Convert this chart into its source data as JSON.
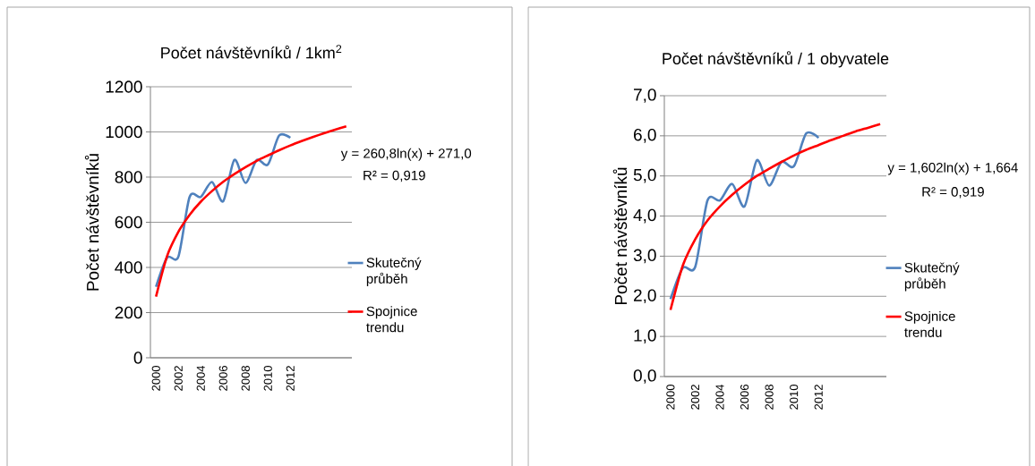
{
  "chart_data": [
    {
      "type": "line",
      "title": "Počet návštěvníků / 1km$^{2}$",
      "ylabel": "Počet návštěvníků",
      "categories": [
        "2000",
        null,
        "2002",
        null,
        "2004",
        null,
        "2006",
        null,
        "2008",
        null,
        "2010",
        null,
        "2012",
        null,
        null,
        null,
        null,
        null
      ],
      "series": [
        {
          "name": "Skutečný průběh",
          "color": "#4f81bd",
          "values": [
            314,
            444,
            448,
            712,
            712,
            778,
            693,
            876,
            774,
            876,
            856,
            984,
            974,
            null,
            null,
            null,
            null,
            null
          ]
        },
        {
          "name": "Spojnice trendu",
          "color": "#ff0000",
          "values": [
            271,
            452,
            558,
            633,
            691,
            738,
            779,
            813,
            844,
            872,
            896,
            919,
            940,
            959,
            977,
            994,
            1010,
            1025
          ]
        }
      ],
      "ylim": [
        0,
        1200
      ],
      "yticks": [
        0,
        200,
        400,
        600,
        800,
        1000,
        1200
      ],
      "grid": "y",
      "legend": "right",
      "annotations": [
        "y = 260,8ln(x) + 271,0",
        "R² = 0,919"
      ]
    },
    {
      "type": "line",
      "title": "Počet návštěvníků / 1 obyvatele",
      "ylabel": "Počet návštěvníků",
      "categories": [
        "2000",
        null,
        "2002",
        null,
        "2004",
        null,
        "2006",
        null,
        "2008",
        null,
        "2010",
        null,
        "2012",
        null,
        null,
        null,
        null,
        null
      ],
      "series": [
        {
          "name": "Skutečný průběh",
          "color": "#4f81bd",
          "values": [
            1.93,
            2.71,
            2.73,
            4.39,
            4.39,
            4.8,
            4.24,
            5.39,
            4.76,
            5.35,
            5.24,
            6.06,
            5.95,
            null,
            null,
            null,
            null,
            null
          ]
        },
        {
          "name": "Spojnice trendu",
          "color": "#ff0000",
          "values": [
            1.66,
            2.77,
            3.42,
            3.89,
            4.24,
            4.53,
            4.78,
            5.0,
            5.18,
            5.35,
            5.51,
            5.65,
            5.77,
            5.89,
            6.0,
            6.11,
            6.2,
            6.29
          ]
        }
      ],
      "ylim": [
        0,
        7
      ],
      "yticks": [
        {
          "value": 0,
          "label": "0,0"
        },
        {
          "value": 1,
          "label": "1,0"
        },
        {
          "value": 2,
          "label": "2,0"
        },
        {
          "value": 3,
          "label": "3,0"
        },
        {
          "value": 4,
          "label": "4,0"
        },
        {
          "value": 5,
          "label": "5,0"
        },
        {
          "value": 6,
          "label": "6,0"
        },
        {
          "value": 7,
          "label": "7,0"
        }
      ],
      "grid": "y",
      "legend": "right",
      "annotations": [
        "y = 1,602ln(x) + 1,664",
        "R² = 0,919"
      ]
    }
  ]
}
